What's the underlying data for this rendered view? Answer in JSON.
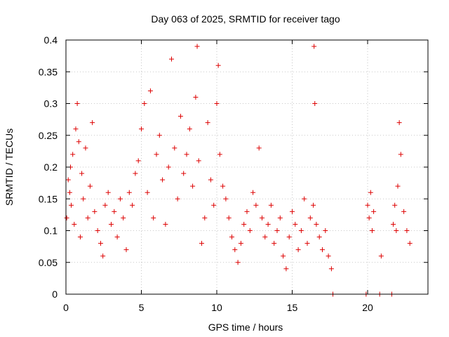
{
  "chart_data": {
    "type": "scatter",
    "title": "Day 063 of 2025, SRMTID for receiver tago",
    "xlabel": "GPS time / hours",
    "ylabel": "SRMTID / TECUs",
    "xlim": [
      0,
      24
    ],
    "ylim": [
      0,
      0.4
    ],
    "xticks": [
      0,
      5,
      10,
      15,
      20
    ],
    "xtick_labels": [
      "0",
      "5",
      "10",
      "15",
      "20"
    ],
    "yticks": [
      0,
      0.05,
      0.1,
      0.15,
      0.2,
      0.25,
      0.3,
      0.35,
      0.4
    ],
    "ytick_labels": [
      "0",
      "0.05",
      "0.1",
      "0.15",
      "0.2",
      "0.25",
      "0.3",
      "0.35",
      "0.4"
    ],
    "grid": true,
    "marker": "+",
    "color": "#dd0000",
    "series": [
      {
        "name": "SRMTID",
        "x": [
          0.05,
          0.15,
          0.25,
          0.3,
          0.35,
          0.45,
          0.55,
          0.65,
          0.75,
          0.85,
          0.95,
          1.05,
          1.15,
          1.3,
          1.45,
          1.6,
          1.75,
          1.9,
          2.1,
          2.3,
          2.45,
          2.6,
          2.8,
          3.0,
          3.2,
          3.4,
          3.6,
          3.8,
          4.0,
          4.2,
          4.4,
          4.6,
          4.8,
          5.0,
          5.2,
          5.4,
          5.6,
          5.8,
          6.0,
          6.2,
          6.4,
          6.6,
          6.8,
          7.0,
          7.2,
          7.4,
          7.6,
          7.8,
          8.0,
          8.2,
          8.4,
          8.6,
          8.7,
          8.8,
          9.0,
          9.2,
          9.4,
          9.6,
          9.8,
          10.0,
          10.1,
          10.2,
          10.4,
          10.6,
          10.8,
          11.0,
          11.2,
          11.4,
          11.6,
          11.8,
          12.0,
          12.2,
          12.4,
          12.6,
          12.8,
          13.0,
          13.2,
          13.4,
          13.6,
          13.8,
          14.0,
          14.2,
          14.4,
          14.6,
          14.8,
          15.0,
          15.2,
          15.4,
          15.6,
          15.8,
          16.0,
          16.2,
          16.4,
          16.45,
          16.5,
          16.6,
          16.8,
          17.0,
          17.2,
          17.4,
          17.6,
          17.7,
          19.9,
          20.0,
          20.1,
          20.2,
          20.3,
          20.4,
          20.8,
          20.9,
          21.6,
          21.7,
          21.8,
          21.9,
          22.0,
          22.1,
          22.2,
          22.4,
          22.6,
          22.8
        ],
        "y": [
          0.12,
          0.18,
          0.16,
          0.2,
          0.14,
          0.22,
          0.11,
          0.26,
          0.3,
          0.24,
          0.09,
          0.19,
          0.15,
          0.23,
          0.12,
          0.17,
          0.27,
          0.13,
          0.1,
          0.08,
          0.06,
          0.14,
          0.16,
          0.11,
          0.13,
          0.09,
          0.15,
          0.12,
          0.07,
          0.16,
          0.14,
          0.19,
          0.21,
          0.26,
          0.3,
          0.16,
          0.32,
          0.12,
          0.22,
          0.25,
          0.18,
          0.11,
          0.2,
          0.37,
          0.23,
          0.15,
          0.28,
          0.19,
          0.22,
          0.26,
          0.17,
          0.31,
          0.39,
          0.21,
          0.08,
          0.12,
          0.27,
          0.18,
          0.14,
          0.3,
          0.36,
          0.22,
          0.17,
          0.15,
          0.12,
          0.09,
          0.07,
          0.05,
          0.08,
          0.11,
          0.13,
          0.1,
          0.16,
          0.14,
          0.23,
          0.12,
          0.09,
          0.11,
          0.14,
          0.08,
          0.1,
          0.12,
          0.06,
          0.04,
          0.09,
          0.13,
          0.11,
          0.07,
          0.1,
          0.15,
          0.08,
          0.12,
          0.14,
          0.39,
          0.3,
          0.11,
          0.09,
          0.07,
          0.1,
          0.06,
          0.04,
          0.0,
          0.0,
          0.14,
          0.12,
          0.16,
          0.1,
          0.13,
          0.0,
          0.06,
          0.0,
          0.11,
          0.14,
          0.1,
          0.17,
          0.27,
          0.22,
          0.13,
          0.1,
          0.08
        ]
      }
    ]
  }
}
